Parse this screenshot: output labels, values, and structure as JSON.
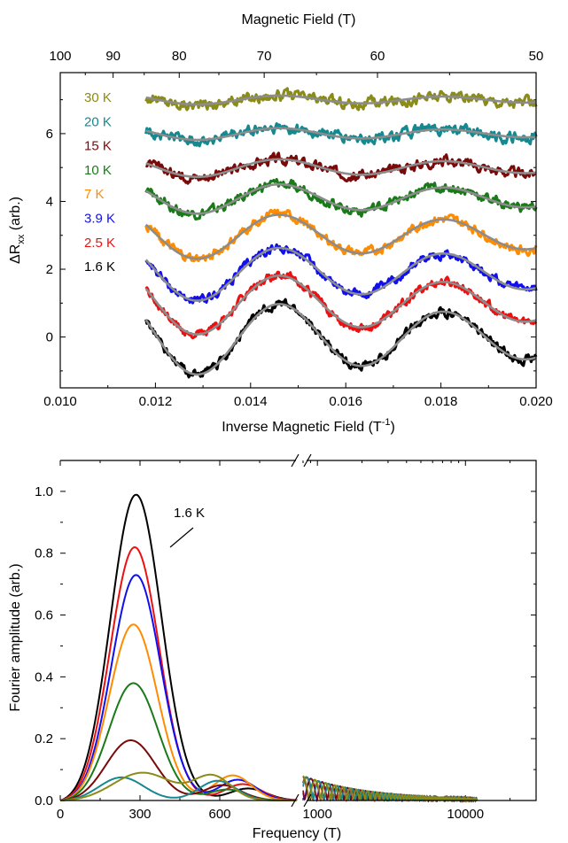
{
  "chart_data": [
    {
      "type": "line",
      "xlabel": "Inverse Magnetic Field (T",
      "xlabel_superscript": "-1",
      "xlabel_suffix": ")",
      "ylabel": "ΔR",
      "ylabel_subscript": "xx",
      "ylabel_suffix": " (arb.)",
      "top_axis_label": "Magnetic Field (T)",
      "top_ticks": [
        "100",
        "90",
        "80",
        "70",
        "60",
        "50"
      ],
      "top_tick_values": [
        100,
        90,
        80,
        70,
        60,
        50
      ],
      "xlim": [
        0.01,
        0.02
      ],
      "ylim": [
        -1.5,
        7.8
      ],
      "x_ticks": [
        "0.010",
        "0.012",
        "0.014",
        "0.016",
        "0.018",
        "0.020"
      ],
      "x_tick_values": [
        0.01,
        0.012,
        0.014,
        0.016,
        0.018,
        0.02
      ],
      "y_ticks": [
        "0",
        "2",
        "4",
        "6"
      ],
      "y_tick_values": [
        0,
        2,
        4,
        6
      ],
      "x_range_data": [
        0.0118,
        0.02
      ],
      "fit_color": "#8c8c8c",
      "series": [
        {
          "name": "30 K",
          "color": "#8b8b1a",
          "offset": 7.0,
          "amp": 0.15,
          "noise": 0.12
        },
        {
          "name": "20 K",
          "color": "#16888f",
          "offset": 6.0,
          "amp": 0.2,
          "noise": 0.12
        },
        {
          "name": "15 K",
          "color": "#7a0a0a",
          "offset": 5.0,
          "amp": 0.3,
          "noise": 0.11
        },
        {
          "name": "10 K",
          "color": "#1a7a1a",
          "offset": 4.1,
          "amp": 0.5,
          "noise": 0.11
        },
        {
          "name": "7 K",
          "color": "#ff8c00",
          "offset": 3.0,
          "amp": 0.75,
          "noise": 0.1
        },
        {
          "name": "3.9 K",
          "color": "#1010ee",
          "offset": 1.9,
          "amp": 0.9,
          "noise": 0.1
        },
        {
          "name": "2.5 K",
          "color": "#ee1010",
          "offset": 1.0,
          "amp": 1.0,
          "noise": 0.1
        },
        {
          "name": "1.6 K",
          "color": "#000000",
          "offset": 0.0,
          "amp": 1.2,
          "noise": 0.1
        }
      ]
    },
    {
      "type": "line",
      "xlabel": "Frequency (T)",
      "ylabel": "Fourier amplitude (arb.)",
      "ylim": [
        0,
        1.1
      ],
      "y_ticks": [
        "0.0",
        "0.2",
        "0.4",
        "0.6",
        "0.8",
        "1.0"
      ],
      "y_tick_values": [
        0.0,
        0.2,
        0.4,
        0.6,
        0.8,
        1.0
      ],
      "x_linear_range": [
        0,
        900
      ],
      "x_linear_ticks": [
        "0",
        "300",
        "600"
      ],
      "x_linear_tick_values": [
        0,
        300,
        600
      ],
      "x_log_range": [
        800,
        30000
      ],
      "x_log_ticks": [
        "1000",
        "10000"
      ],
      "x_log_tick_values": [
        1000,
        10000
      ],
      "annotation": "1.6 K",
      "series": [
        {
          "name": "1.6 K",
          "color": "#000000",
          "peak": 0.99,
          "center": 285,
          "width": 95
        },
        {
          "name": "2.5 K",
          "color": "#ee1010",
          "peak": 0.82,
          "center": 280,
          "width": 92
        },
        {
          "name": "3.9 K",
          "color": "#1010ee",
          "peak": 0.73,
          "center": 285,
          "width": 92
        },
        {
          "name": "7 K",
          "color": "#ff8c00",
          "peak": 0.57,
          "center": 275,
          "width": 90
        },
        {
          "name": "10 K",
          "color": "#1a7a1a",
          "peak": 0.38,
          "center": 275,
          "width": 92
        },
        {
          "name": "15 K",
          "color": "#7a0a0a",
          "peak": 0.195,
          "center": 265,
          "width": 92
        },
        {
          "name": "20 K",
          "color": "#16888f",
          "peak": 0.075,
          "center": 230,
          "width": 85
        },
        {
          "name": "30 K",
          "color": "#8b8b1a",
          "peak": 0.09,
          "center": 310,
          "width": 110
        }
      ]
    }
  ]
}
